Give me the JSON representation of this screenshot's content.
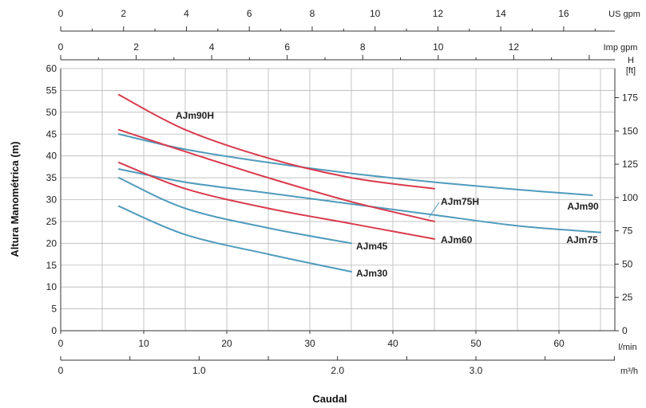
{
  "chart_data": {
    "type": "line",
    "xlabel": "Caudal",
    "ylabel": "Altura Manométrica (m)",
    "x_unit": "l/min",
    "y_unit_right": "H [ft]",
    "xlim": [
      0,
      67
    ],
    "ylim": [
      0,
      60
    ],
    "grid": true,
    "x_ticks": [
      0,
      10,
      20,
      30,
      40,
      50,
      60
    ],
    "y_ticks": [
      0,
      5,
      10,
      15,
      20,
      25,
      30,
      35,
      40,
      45,
      50,
      55,
      60
    ],
    "right_axis": {
      "unit_line1": "H",
      "unit_line2": "[ft]",
      "ticks": [
        0,
        25,
        50,
        75,
        100,
        125,
        150,
        175
      ]
    },
    "top_axis_usgpm": {
      "unit": "US gpm",
      "ticks": [
        0,
        2,
        4,
        6,
        8,
        10,
        12,
        14,
        16
      ]
    },
    "top_axis_impgpm": {
      "unit": "Imp gpm",
      "ticks": [
        0,
        2,
        4,
        6,
        8,
        10,
        12
      ]
    },
    "bottom_axis_m3h": {
      "unit": "m³/h",
      "ticks": [
        "0",
        "1.0",
        "2.0",
        "3.0"
      ]
    },
    "colors": {
      "red": "#d93b4d",
      "blue": "#4f9bbd"
    },
    "series": [
      {
        "name": "AJm90H",
        "color": "red",
        "x": [
          7,
          15,
          25,
          35,
          45
        ],
        "y": [
          54,
          46,
          39.5,
          35,
          32.5
        ]
      },
      {
        "name": "AJm90",
        "color": "blue",
        "x": [
          7,
          15,
          25,
          35,
          45,
          55,
          64
        ],
        "y": [
          45,
          41.5,
          38.5,
          36,
          34,
          32.3,
          31
        ]
      },
      {
        "name": "AJm75H",
        "color": "red",
        "x": [
          7,
          15,
          25,
          35,
          45
        ],
        "y": [
          46,
          41,
          35,
          29.5,
          25
        ]
      },
      {
        "name": "AJm75",
        "color": "blue",
        "x": [
          7,
          15,
          25,
          35,
          45,
          55,
          65
        ],
        "y": [
          37,
          34,
          31.5,
          29,
          26.5,
          24,
          22.5
        ]
      },
      {
        "name": "AJm60",
        "color": "red",
        "x": [
          7,
          15,
          25,
          35,
          45
        ],
        "y": [
          38.5,
          32.5,
          28,
          24.5,
          21
        ]
      },
      {
        "name": "AJm45",
        "color": "blue",
        "x": [
          7,
          15,
          25,
          35
        ],
        "y": [
          35,
          28,
          23.5,
          20
        ]
      },
      {
        "name": "AJm30",
        "color": "blue",
        "x": [
          7,
          15,
          25,
          35
        ],
        "y": [
          28.5,
          22,
          17.5,
          13.5
        ]
      }
    ]
  }
}
